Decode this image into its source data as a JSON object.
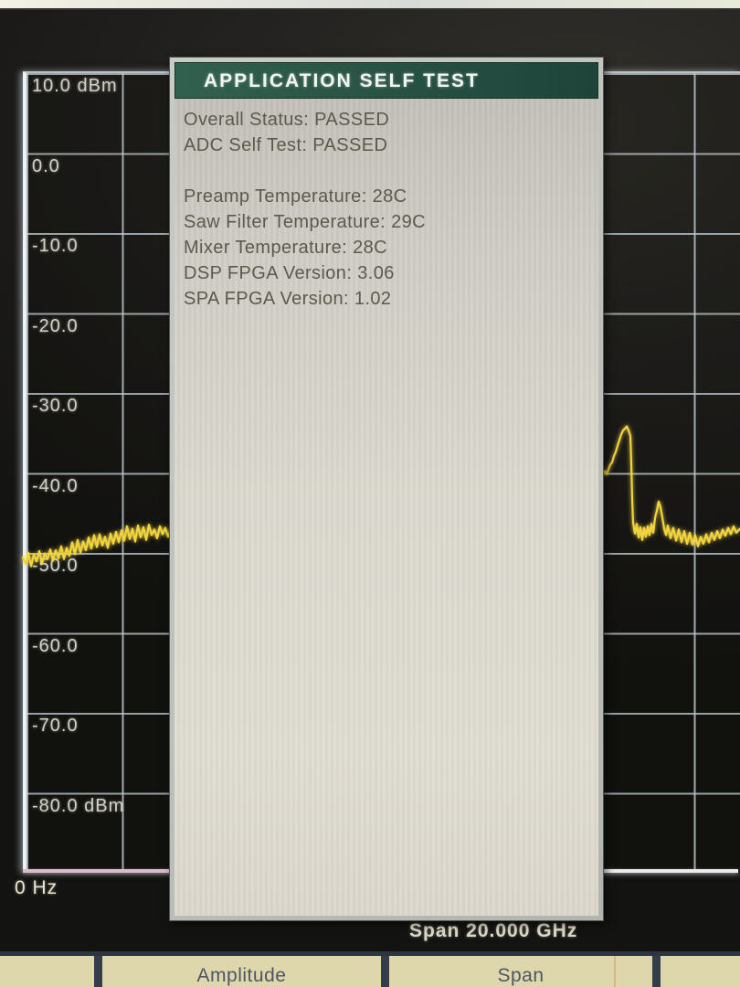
{
  "screen": {
    "y_axis_labels": [
      "10.0 dBm",
      "0.0",
      "-10.0",
      "-20.0",
      "-30.0",
      "-40.0",
      "-50.0",
      "-60.0",
      "-70.0",
      "-80.0 dBm"
    ],
    "x_start_label": "0 Hz",
    "span_readout": "Span 20.000 GHz"
  },
  "dialog": {
    "title": "APPLICATION SELF TEST",
    "lines": [
      "Overall Status: PASSED",
      "ADC Self Test: PASSED",
      "",
      "Preamp Temperature: 28C",
      "Saw Filter Temperature: 29C",
      "Mixer Temperature: 28C",
      "DSP FPGA Version: 3.06",
      "SPA FPGA Version: 1.02"
    ]
  },
  "softkeys": {
    "buttons": [
      {
        "label": "Amplitude"
      },
      {
        "label": "Span"
      }
    ]
  },
  "colors": {
    "trace": "#f2d43c",
    "title_bar_green": "#2b5847",
    "grid_line": "#b9c4ca",
    "softkey_bg": "#ded7ab",
    "dialog_body": "#d6d3c9"
  },
  "trace": {
    "units": "pairs of [x_pixel, dBm]; +10 dBm at grid top, -80 dBm at grid bottom, 10 dB per division",
    "left_segment": [
      [
        25,
        -50.8
      ],
      [
        28,
        -51.6
      ],
      [
        31,
        -50.2
      ],
      [
        34,
        -51.9
      ],
      [
        37,
        -50.4
      ],
      [
        40,
        -51.3
      ],
      [
        43,
        -50.0
      ],
      [
        46,
        -51.5
      ],
      [
        49,
        -50.3
      ],
      [
        52,
        -51.0
      ],
      [
        55,
        -49.8
      ],
      [
        58,
        -51.2
      ],
      [
        61,
        -49.9
      ],
      [
        64,
        -50.9
      ],
      [
        67,
        -49.4
      ],
      [
        70,
        -51.0
      ],
      [
        73,
        -49.6
      ],
      [
        76,
        -50.6
      ],
      [
        79,
        -48.9
      ],
      [
        82,
        -50.4
      ],
      [
        85,
        -48.6
      ],
      [
        88,
        -50.2
      ],
      [
        91,
        -48.8
      ],
      [
        94,
        -49.9
      ],
      [
        97,
        -48.3
      ],
      [
        100,
        -49.7
      ],
      [
        103,
        -48.0
      ],
      [
        106,
        -49.5
      ],
      [
        109,
        -47.9
      ],
      [
        112,
        -49.3
      ],
      [
        115,
        -48.2
      ],
      [
        118,
        -49.6
      ],
      [
        121,
        -47.8
      ],
      [
        124,
        -49.1
      ],
      [
        127,
        -47.6
      ],
      [
        130,
        -48.9
      ],
      [
        133,
        -47.4
      ],
      [
        136,
        -48.7
      ],
      [
        139,
        -46.9
      ],
      [
        142,
        -48.5
      ],
      [
        145,
        -47.2
      ],
      [
        148,
        -48.8
      ],
      [
        151,
        -46.8
      ],
      [
        154,
        -48.3
      ],
      [
        157,
        -47.0
      ],
      [
        160,
        -48.6
      ],
      [
        163,
        -46.7
      ],
      [
        166,
        -48.0
      ],
      [
        169,
        -47.3
      ],
      [
        172,
        -48.4
      ],
      [
        175,
        -46.9
      ],
      [
        178,
        -47.9
      ],
      [
        181,
        -47.1
      ],
      [
        184,
        -48.2
      ],
      [
        187,
        -47.4
      ]
    ],
    "right_segment": [
      [
        660,
        -40.3
      ],
      [
        662,
        -40.0
      ],
      [
        664,
        -40.4
      ],
      [
        666,
        -39.8
      ],
      [
        668,
        -39.2
      ],
      [
        670,
        -38.9
      ],
      [
        672,
        -38.1
      ],
      [
        674,
        -37.6
      ],
      [
        676,
        -36.8
      ],
      [
        678,
        -36.1
      ],
      [
        680,
        -35.4
      ],
      [
        682,
        -34.9
      ],
      [
        684,
        -34.7
      ],
      [
        686,
        -34.4
      ],
      [
        688,
        -34.9
      ],
      [
        690,
        -35.6
      ],
      [
        691,
        -39.0
      ],
      [
        692,
        -43.5
      ],
      [
        693,
        -46.5
      ],
      [
        695,
        -47.8
      ],
      [
        697,
        -46.6
      ],
      [
        699,
        -48.3
      ],
      [
        701,
        -47.0
      ],
      [
        703,
        -48.6
      ],
      [
        705,
        -47.1
      ],
      [
        707,
        -48.2
      ],
      [
        709,
        -46.9
      ],
      [
        711,
        -48.0
      ],
      [
        713,
        -46.6
      ],
      [
        715,
        -47.7
      ],
      [
        717,
        -45.9
      ],
      [
        719,
        -44.9
      ],
      [
        721,
        -43.8
      ],
      [
        723,
        -44.5
      ],
      [
        725,
        -45.8
      ],
      [
        727,
        -47.2
      ],
      [
        729,
        -48.0
      ],
      [
        731,
        -46.8
      ],
      [
        734,
        -48.4
      ],
      [
        737,
        -47.1
      ],
      [
        740,
        -48.7
      ],
      [
        743,
        -47.3
      ],
      [
        746,
        -48.9
      ],
      [
        749,
        -47.5
      ],
      [
        752,
        -49.1
      ],
      [
        755,
        -47.7
      ],
      [
        758,
        -49.2
      ],
      [
        761,
        -48.0
      ],
      [
        764,
        -49.4
      ],
      [
        767,
        -48.2
      ],
      [
        770,
        -49.1
      ],
      [
        773,
        -47.9
      ],
      [
        776,
        -48.9
      ],
      [
        779,
        -47.7
      ],
      [
        782,
        -48.6
      ],
      [
        785,
        -47.5
      ],
      [
        788,
        -48.4
      ],
      [
        791,
        -47.3
      ],
      [
        794,
        -48.1
      ],
      [
        797,
        -47.1
      ],
      [
        800,
        -47.9
      ],
      [
        803,
        -46.9
      ],
      [
        806,
        -47.7
      ],
      [
        810,
        -47.2
      ]
    ]
  }
}
